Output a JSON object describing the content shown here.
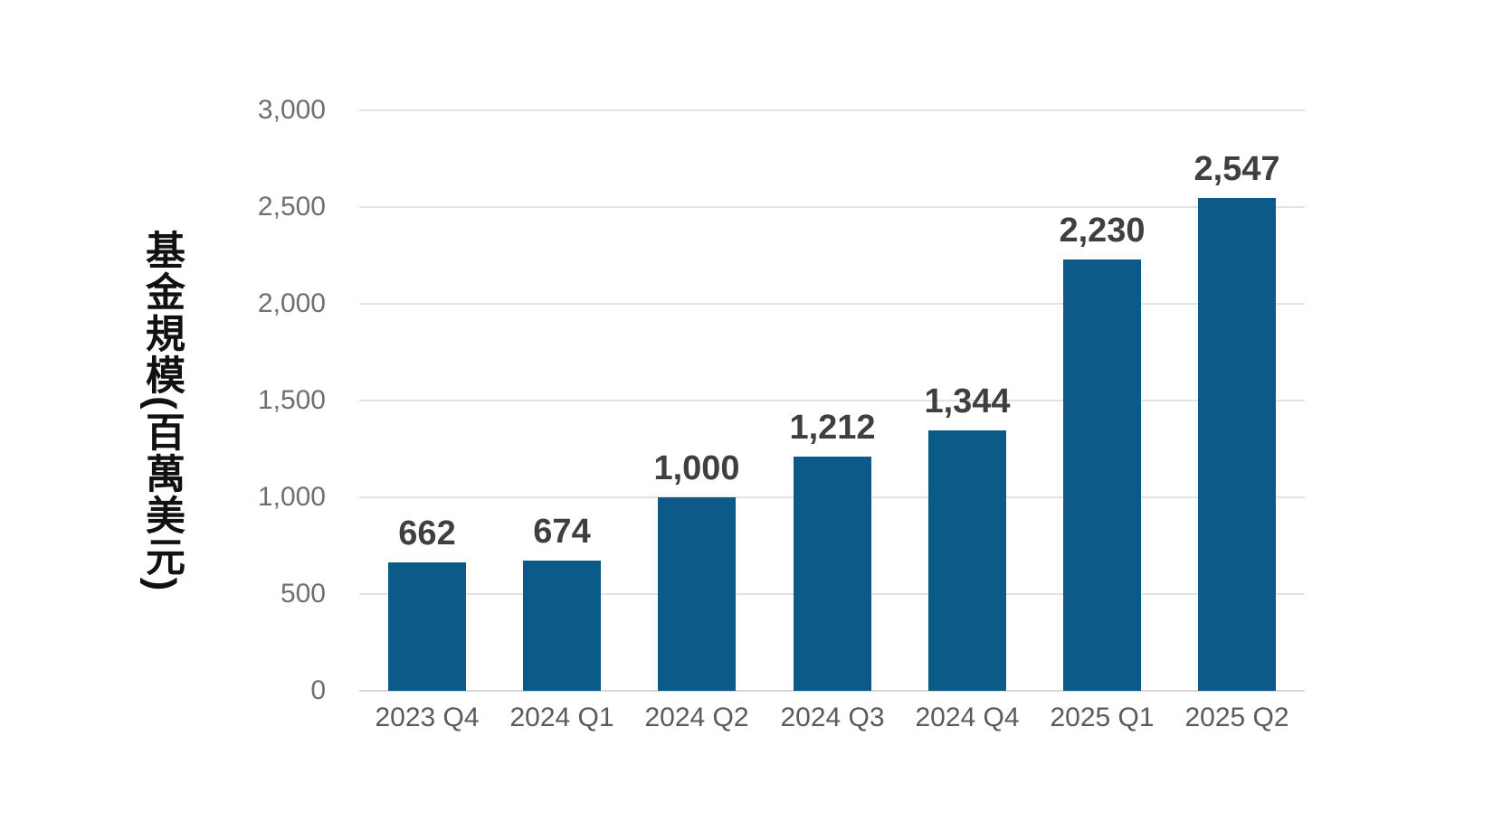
{
  "chart_data": {
    "type": "bar",
    "categories": [
      "2023 Q4",
      "2024 Q1",
      "2024 Q2",
      "2024 Q3",
      "2024 Q4",
      "2025 Q1",
      "2025 Q2"
    ],
    "values": [
      662,
      674,
      1000,
      1212,
      1344,
      2230,
      2547
    ],
    "value_labels": [
      "662",
      "674",
      "1,000",
      "1,212",
      "1,344",
      "2,230",
      "2,547"
    ],
    "title": "",
    "xlabel": "",
    "ylabel": "基金規模(百萬美元)",
    "ylim": [
      0,
      3000
    ],
    "ytick_interval": 500,
    "ytick_labels": [
      "0",
      "500",
      "1,000",
      "1,500",
      "2,000",
      "2,500",
      "3,000"
    ],
    "grid": true,
    "legend": "none",
    "colors": {
      "bar": "#0b5a88",
      "gridline": "#e3e3e3",
      "baseline": "#d8d8d8",
      "y_tick_text": "#6f6f6f",
      "x_tick_text": "#5a5a5a",
      "value_label_text": "#3f3f3f",
      "y_title_text": "#111111",
      "background": "#ffffff"
    }
  }
}
